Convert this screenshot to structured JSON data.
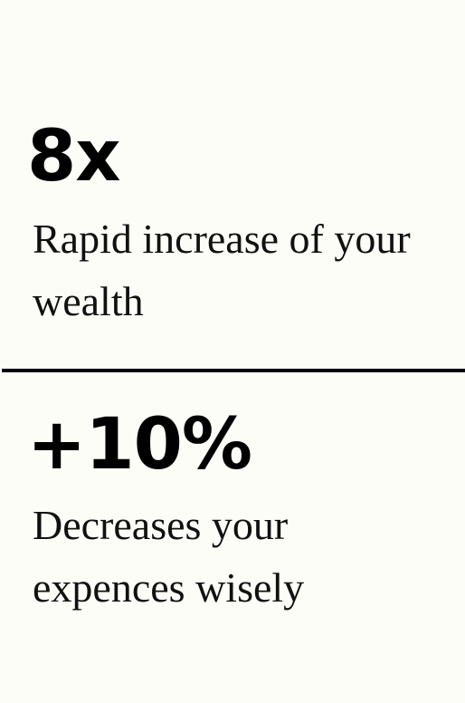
{
  "stats": [
    {
      "value": "8x",
      "description": "Rapid increase of your wealth"
    },
    {
      "value": "+10%",
      "description": "Decreases your expences wisely"
    }
  ],
  "colors": {
    "background": "#fdfdf8",
    "text": "#000000",
    "divider": "#000000"
  }
}
